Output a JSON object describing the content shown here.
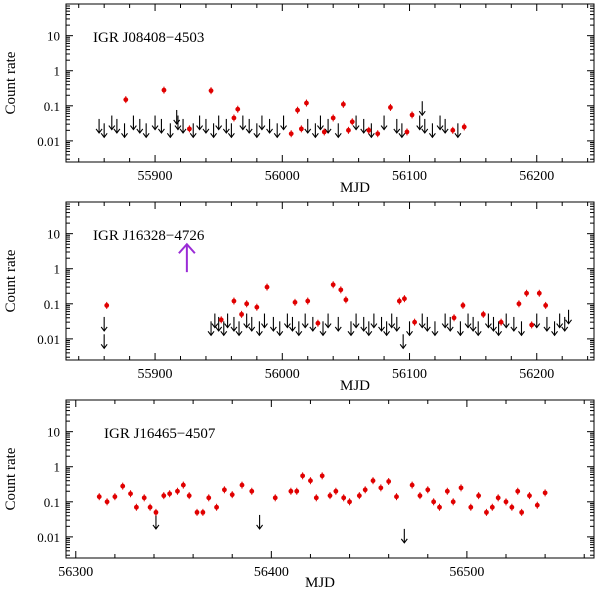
{
  "chart_data": [
    {
      "type": "scatter",
      "title": "IGR J08408−4503",
      "xlabel": "MJD",
      "ylabel": "Count rate",
      "xlim": [
        55830,
        56245
      ],
      "ylim_log": [
        0.0025,
        80
      ],
      "xticks": [
        55900,
        56000,
        56100,
        56200
      ],
      "yticks": [
        0.01,
        0.1,
        1,
        10
      ],
      "ytick_labels": [
        "0.01",
        "0.1",
        "1",
        "10"
      ],
      "detections": [
        {
          "x": 55877,
          "y": 0.15
        },
        {
          "x": 55907,
          "y": 0.28
        },
        {
          "x": 55927,
          "y": 0.022
        },
        {
          "x": 55944,
          "y": 0.27
        },
        {
          "x": 55962,
          "y": 0.045
        },
        {
          "x": 55965,
          "y": 0.08
        },
        {
          "x": 56007,
          "y": 0.016
        },
        {
          "x": 56012,
          "y": 0.075
        },
        {
          "x": 56015,
          "y": 0.022
        },
        {
          "x": 56019,
          "y": 0.12
        },
        {
          "x": 56033,
          "y": 0.018
        },
        {
          "x": 56040,
          "y": 0.045
        },
        {
          "x": 56048,
          "y": 0.11
        },
        {
          "x": 56052,
          "y": 0.02
        },
        {
          "x": 56055,
          "y": 0.035
        },
        {
          "x": 56068,
          "y": 0.02
        },
        {
          "x": 56075,
          "y": 0.016
        },
        {
          "x": 56085,
          "y": 0.09
        },
        {
          "x": 56098,
          "y": 0.018
        },
        {
          "x": 56102,
          "y": 0.055
        },
        {
          "x": 56134,
          "y": 0.02
        },
        {
          "x": 56143,
          "y": 0.025
        }
      ],
      "upper_limits": [
        55856,
        55860,
        55866,
        55870,
        55876,
        55883,
        55888,
        55893,
        55900,
        55905,
        55912,
        55918,
        55922,
        55930,
        55935,
        55940,
        55946,
        55950,
        55956,
        55960,
        55969,
        55974,
        55980,
        55984,
        55990,
        55996,
        56001,
        56020,
        56026,
        56030,
        56036,
        56044,
        56058,
        56064,
        56070,
        56080,
        56090,
        56094,
        56108,
        56112,
        56118,
        56124,
        56128,
        56138
      ],
      "upper_limit_level": 0.025,
      "upper_limits_high": [
        {
          "x": 55917,
          "y": 0.045
        },
        {
          "x": 56110,
          "y": 0.08
        }
      ]
    },
    {
      "type": "scatter",
      "title": "IGR J16328−4726",
      "xlabel": "MJD",
      "ylabel": "Count rate",
      "xlim": [
        55830,
        56245
      ],
      "ylim_log": [
        0.0025,
        80
      ],
      "xticks": [
        55900,
        56000,
        56100,
        56200
      ],
      "yticks": [
        0.01,
        0.1,
        1,
        10
      ],
      "ytick_labels": [
        "0.01",
        "0.1",
        "1",
        "10"
      ],
      "annotation_arrow": {
        "x": 55925,
        "from_y": 0.8,
        "to_y": 5,
        "color": "#9a2bd6"
      },
      "detections": [
        {
          "x": 55862,
          "y": 0.09
        },
        {
          "x": 55952,
          "y": 0.035
        },
        {
          "x": 55962,
          "y": 0.12
        },
        {
          "x": 55968,
          "y": 0.05
        },
        {
          "x": 55972,
          "y": 0.1
        },
        {
          "x": 55980,
          "y": 0.08
        },
        {
          "x": 55988,
          "y": 0.3
        },
        {
          "x": 56010,
          "y": 0.11
        },
        {
          "x": 56020,
          "y": 0.12
        },
        {
          "x": 56028,
          "y": 0.028
        },
        {
          "x": 56040,
          "y": 0.35
        },
        {
          "x": 56046,
          "y": 0.25
        },
        {
          "x": 56050,
          "y": 0.13
        },
        {
          "x": 56092,
          "y": 0.12
        },
        {
          "x": 56096,
          "y": 0.14
        },
        {
          "x": 56104,
          "y": 0.03
        },
        {
          "x": 56135,
          "y": 0.04
        },
        {
          "x": 56142,
          "y": 0.09
        },
        {
          "x": 56158,
          "y": 0.05
        },
        {
          "x": 56172,
          "y": 0.03
        },
        {
          "x": 56186,
          "y": 0.1
        },
        {
          "x": 56192,
          "y": 0.2
        },
        {
          "x": 56196,
          "y": 0.025
        },
        {
          "x": 56202,
          "y": 0.2
        },
        {
          "x": 56207,
          "y": 0.09
        }
      ],
      "upper_limits": [
        55860,
        55944,
        55947,
        55950,
        55954,
        55957,
        55962,
        55966,
        55972,
        55976,
        55982,
        55986,
        55993,
        55998,
        56004,
        56008,
        56013,
        56018,
        56024,
        56032,
        56036,
        56044,
        56054,
        56058,
        56064,
        56068,
        56072,
        56078,
        56082,
        56086,
        56090,
        56100,
        56110,
        56114,
        56120,
        56128,
        56132,
        56140,
        56146,
        56150,
        56154,
        56162,
        56166,
        56170,
        56176,
        56182,
        56188,
        56200,
        56208,
        56214,
        56218,
        56222
      ],
      "upper_limit_level": 0.025,
      "upper_limits_low": [
        {
          "x": 55860,
          "y": 0.008
        },
        {
          "x": 56095,
          "y": 0.008
        }
      ],
      "upper_limits_high": [
        {
          "x": 56225,
          "y": 0.04
        }
      ]
    },
    {
      "type": "scatter",
      "title": "IGR J16465−4507",
      "xlabel": "MJD",
      "ylabel": "Count rate",
      "xlim": [
        56295,
        56565
      ],
      "ylim_log": [
        0.0025,
        80
      ],
      "xticks": [
        56300,
        56400,
        56500
      ],
      "yticks": [
        0.01,
        0.1,
        1,
        10
      ],
      "ytick_labels": [
        "0.01",
        "0.1",
        "1",
        "10"
      ],
      "detections": [
        {
          "x": 56312,
          "y": 0.14
        },
        {
          "x": 56316,
          "y": 0.1
        },
        {
          "x": 56320,
          "y": 0.14
        },
        {
          "x": 56324,
          "y": 0.28
        },
        {
          "x": 56328,
          "y": 0.17
        },
        {
          "x": 56331,
          "y": 0.07
        },
        {
          "x": 56335,
          "y": 0.13
        },
        {
          "x": 56338,
          "y": 0.07
        },
        {
          "x": 56341,
          "y": 0.05
        },
        {
          "x": 56345,
          "y": 0.15
        },
        {
          "x": 56348,
          "y": 0.17
        },
        {
          "x": 56352,
          "y": 0.2
        },
        {
          "x": 56355,
          "y": 0.3
        },
        {
          "x": 56358,
          "y": 0.15
        },
        {
          "x": 56362,
          "y": 0.05
        },
        {
          "x": 56365,
          "y": 0.05
        },
        {
          "x": 56368,
          "y": 0.13
        },
        {
          "x": 56372,
          "y": 0.07
        },
        {
          "x": 56376,
          "y": 0.22
        },
        {
          "x": 56380,
          "y": 0.16
        },
        {
          "x": 56385,
          "y": 0.3
        },
        {
          "x": 56390,
          "y": 0.2
        },
        {
          "x": 56402,
          "y": 0.13
        },
        {
          "x": 56410,
          "y": 0.2
        },
        {
          "x": 56413,
          "y": 0.2
        },
        {
          "x": 56416,
          "y": 0.55
        },
        {
          "x": 56420,
          "y": 0.4
        },
        {
          "x": 56423,
          "y": 0.13
        },
        {
          "x": 56426,
          "y": 0.55
        },
        {
          "x": 56430,
          "y": 0.15
        },
        {
          "x": 56433,
          "y": 0.2
        },
        {
          "x": 56437,
          "y": 0.13
        },
        {
          "x": 56440,
          "y": 0.1
        },
        {
          "x": 56445,
          "y": 0.15
        },
        {
          "x": 56448,
          "y": 0.22
        },
        {
          "x": 56452,
          "y": 0.4
        },
        {
          "x": 56456,
          "y": 0.25
        },
        {
          "x": 56460,
          "y": 0.38
        },
        {
          "x": 56464,
          "y": 0.14
        },
        {
          "x": 56472,
          "y": 0.3
        },
        {
          "x": 56476,
          "y": 0.15
        },
        {
          "x": 56480,
          "y": 0.22
        },
        {
          "x": 56483,
          "y": 0.1
        },
        {
          "x": 56486,
          "y": 0.07
        },
        {
          "x": 56490,
          "y": 0.2
        },
        {
          "x": 56493,
          "y": 0.1
        },
        {
          "x": 56497,
          "y": 0.25
        },
        {
          "x": 56502,
          "y": 0.07
        },
        {
          "x": 56506,
          "y": 0.15
        },
        {
          "x": 56510,
          "y": 0.05
        },
        {
          "x": 56513,
          "y": 0.07
        },
        {
          "x": 56516,
          "y": 0.13
        },
        {
          "x": 56520,
          "y": 0.1
        },
        {
          "x": 56523,
          "y": 0.07
        },
        {
          "x": 56526,
          "y": 0.2
        },
        {
          "x": 56528,
          "y": 0.05
        },
        {
          "x": 56532,
          "y": 0.15
        },
        {
          "x": 56536,
          "y": 0.08
        },
        {
          "x": 56540,
          "y": 0.18
        }
      ],
      "upper_limits_low": [
        {
          "x": 56341,
          "y": 0.025
        },
        {
          "x": 56394,
          "y": 0.025
        },
        {
          "x": 56468,
          "y": 0.01
        }
      ]
    }
  ]
}
